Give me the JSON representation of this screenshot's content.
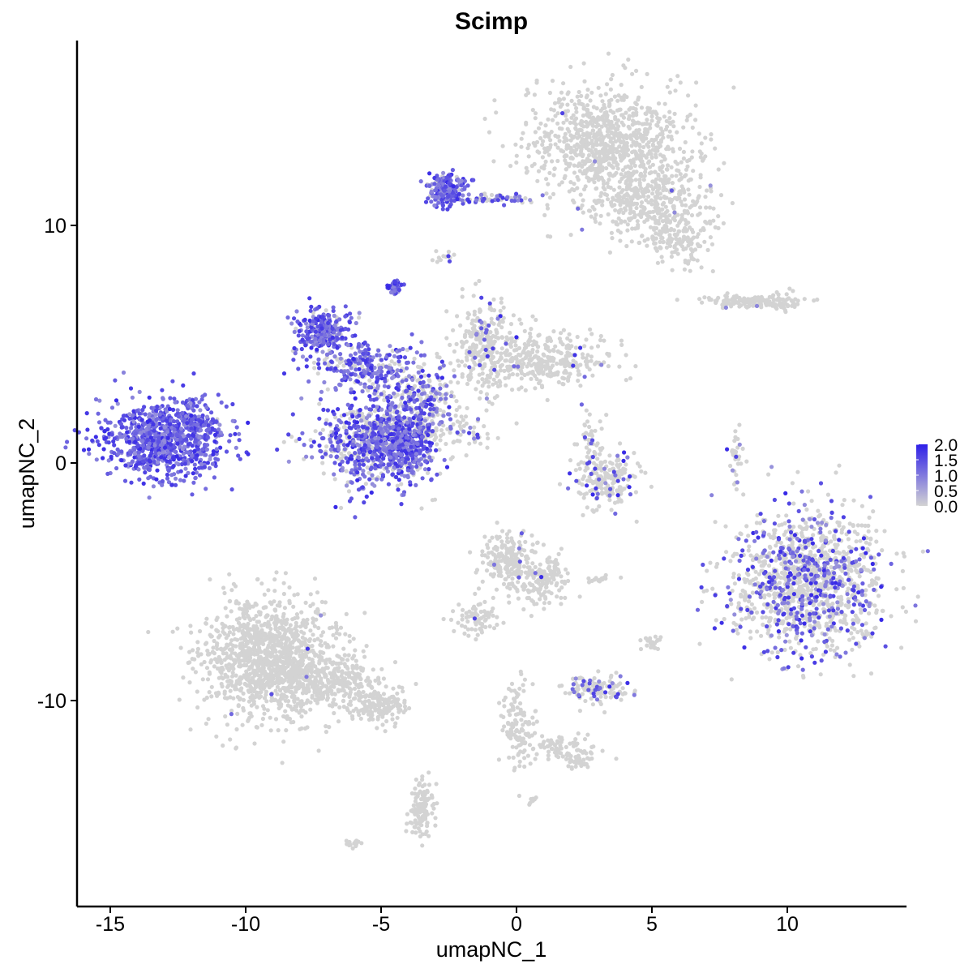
{
  "chart_data": {
    "type": "scatter",
    "title": "Scimp",
    "xlabel": "umapNC_1",
    "ylabel": "umapNC_2",
    "xlim": [
      -16.5,
      14.5
    ],
    "ylim": [
      -18.5,
      17.5
    ],
    "xticks": [
      -15,
      -10,
      -5,
      0,
      5,
      10
    ],
    "xtick_labels": [
      "-15",
      "-10",
      "-5",
      "0",
      "5",
      "10"
    ],
    "yticks": [
      10,
      0,
      -10
    ],
    "ytick_labels": [
      "10",
      "0",
      "-10"
    ],
    "grid": false,
    "legend": {
      "placement": "right",
      "labels": [
        "2.0",
        "1.5",
        "1.0",
        "0.5",
        "0.0"
      ],
      "range": [
        0,
        2
      ],
      "low_color": "#d3d3d3",
      "high_color": "#2e1fe8"
    },
    "point_color_zero": "#d3d3d3",
    "clusters": [
      {
        "cx": 3.5,
        "cy": 13.5,
        "sx": 1.5,
        "sy": 1.2,
        "n": 900,
        "expr_frac": 0.01
      },
      {
        "cx": 4.8,
        "cy": 11.0,
        "sx": 1.2,
        "sy": 0.8,
        "n": 350,
        "expr_frac": 0.01
      },
      {
        "cx": 6.0,
        "cy": 9.5,
        "sx": 0.6,
        "sy": 0.6,
        "n": 150,
        "expr_frac": 0.0
      },
      {
        "cx": -2.6,
        "cy": 11.5,
        "sx": 0.35,
        "sy": 0.35,
        "n": 200,
        "expr_frac": 0.85
      },
      {
        "cx": -0.7,
        "cy": 11.1,
        "sx": 0.7,
        "sy": 0.12,
        "n": 60,
        "expr_frac": 0.5
      },
      {
        "cx": -2.7,
        "cy": 8.8,
        "sx": 0.15,
        "sy": 0.15,
        "n": 12,
        "expr_frac": 0.3
      },
      {
        "cx": 8.5,
        "cy": 6.8,
        "sx": 0.8,
        "sy": 0.15,
        "n": 130,
        "expr_frac": 0.02
      },
      {
        "cx": 9.8,
        "cy": 6.8,
        "sx": 0.3,
        "sy": 0.2,
        "n": 40,
        "expr_frac": 0.0
      },
      {
        "cx": -4.5,
        "cy": 7.4,
        "sx": 0.15,
        "sy": 0.15,
        "n": 40,
        "expr_frac": 1.0
      },
      {
        "cx": -7.1,
        "cy": 5.5,
        "sx": 0.5,
        "sy": 0.5,
        "n": 250,
        "expr_frac": 0.9
      },
      {
        "cx": -5.5,
        "cy": 4.0,
        "sx": 0.9,
        "sy": 0.5,
        "n": 250,
        "expr_frac": 0.75
      },
      {
        "cx": -1.2,
        "cy": 5.0,
        "sx": 0.6,
        "sy": 1.0,
        "n": 250,
        "expr_frac": 0.08
      },
      {
        "cx": 0.9,
        "cy": 4.4,
        "sx": 1.2,
        "sy": 0.6,
        "n": 350,
        "expr_frac": 0.03
      },
      {
        "cx": -3.5,
        "cy": 2.7,
        "sx": 0.7,
        "sy": 0.9,
        "n": 250,
        "expr_frac": 0.45
      },
      {
        "cx": -5.2,
        "cy": 0.9,
        "sx": 1.1,
        "sy": 0.9,
        "n": 800,
        "expr_frac": 0.6
      },
      {
        "cx": -4.0,
        "cy": 0.6,
        "sx": 0.35,
        "sy": 0.7,
        "n": 180,
        "expr_frac": 0.95
      },
      {
        "cx": -2.0,
        "cy": 1.2,
        "sx": 0.8,
        "sy": 0.3,
        "n": 50,
        "expr_frac": 0.1
      },
      {
        "cx": -13.0,
        "cy": 1.0,
        "sx": 1.1,
        "sy": 0.8,
        "n": 900,
        "expr_frac": 1.0
      },
      {
        "cx": -11.8,
        "cy": 1.8,
        "sx": 0.4,
        "sy": 0.5,
        "n": 60,
        "expr_frac": 0.95
      },
      {
        "cx": 3.3,
        "cy": -0.6,
        "sx": 0.6,
        "sy": 0.6,
        "n": 200,
        "expr_frac": 0.15
      },
      {
        "cx": 2.8,
        "cy": 1.0,
        "sx": 0.2,
        "sy": 0.6,
        "n": 40,
        "expr_frac": 0.1
      },
      {
        "cx": 8.1,
        "cy": 0.2,
        "sx": 0.15,
        "sy": 0.6,
        "n": 35,
        "expr_frac": 0.2
      },
      {
        "cx": 10.8,
        "cy": -5.0,
        "sx": 1.4,
        "sy": 1.5,
        "n": 1300,
        "expr_frac": 0.3
      },
      {
        "cx": -0.4,
        "cy": -4.0,
        "sx": 0.5,
        "sy": 0.6,
        "n": 180,
        "expr_frac": 0.03
      },
      {
        "cx": 0.8,
        "cy": -4.9,
        "sx": 0.6,
        "sy": 0.5,
        "n": 180,
        "expr_frac": 0.03
      },
      {
        "cx": -1.5,
        "cy": -6.5,
        "sx": 0.4,
        "sy": 0.4,
        "n": 70,
        "expr_frac": 0.03
      },
      {
        "cx": 3.0,
        "cy": -9.5,
        "sx": 0.6,
        "sy": 0.25,
        "n": 120,
        "expr_frac": 0.25
      },
      {
        "cx": 5.0,
        "cy": -7.6,
        "sx": 0.2,
        "sy": 0.15,
        "n": 25,
        "expr_frac": 0.0
      },
      {
        "cx": 3.0,
        "cy": -4.9,
        "sx": 0.3,
        "sy": 0.08,
        "n": 15,
        "expr_frac": 0.0
      },
      {
        "cx": -9.2,
        "cy": -8.2,
        "sx": 1.2,
        "sy": 1.3,
        "n": 1200,
        "expr_frac": 0.003
      },
      {
        "cx": -6.8,
        "cy": -9.2,
        "sx": 0.9,
        "sy": 0.5,
        "n": 300,
        "expr_frac": 0.003
      },
      {
        "cx": -5.0,
        "cy": -10.2,
        "sx": 0.6,
        "sy": 0.35,
        "n": 150,
        "expr_frac": 0.0
      },
      {
        "cx": -3.5,
        "cy": -14.5,
        "sx": 0.25,
        "sy": 0.6,
        "n": 120,
        "expr_frac": 0.0
      },
      {
        "cx": 0.0,
        "cy": -11.0,
        "sx": 0.3,
        "sy": 1.0,
        "n": 120,
        "expr_frac": 0.0
      },
      {
        "cx": 1.5,
        "cy": -12.0,
        "sx": 0.7,
        "sy": 0.3,
        "n": 80,
        "expr_frac": 0.0
      },
      {
        "cx": 2.3,
        "cy": -12.6,
        "sx": 0.25,
        "sy": 0.15,
        "n": 30,
        "expr_frac": 0.0
      },
      {
        "cx": -6.0,
        "cy": -16.0,
        "sx": 0.15,
        "sy": 0.1,
        "n": 15,
        "expr_frac": 0.0
      },
      {
        "cx": 0.6,
        "cy": -14.2,
        "sx": 0.1,
        "sy": 0.1,
        "n": 8,
        "expr_frac": 0.0
      }
    ]
  }
}
